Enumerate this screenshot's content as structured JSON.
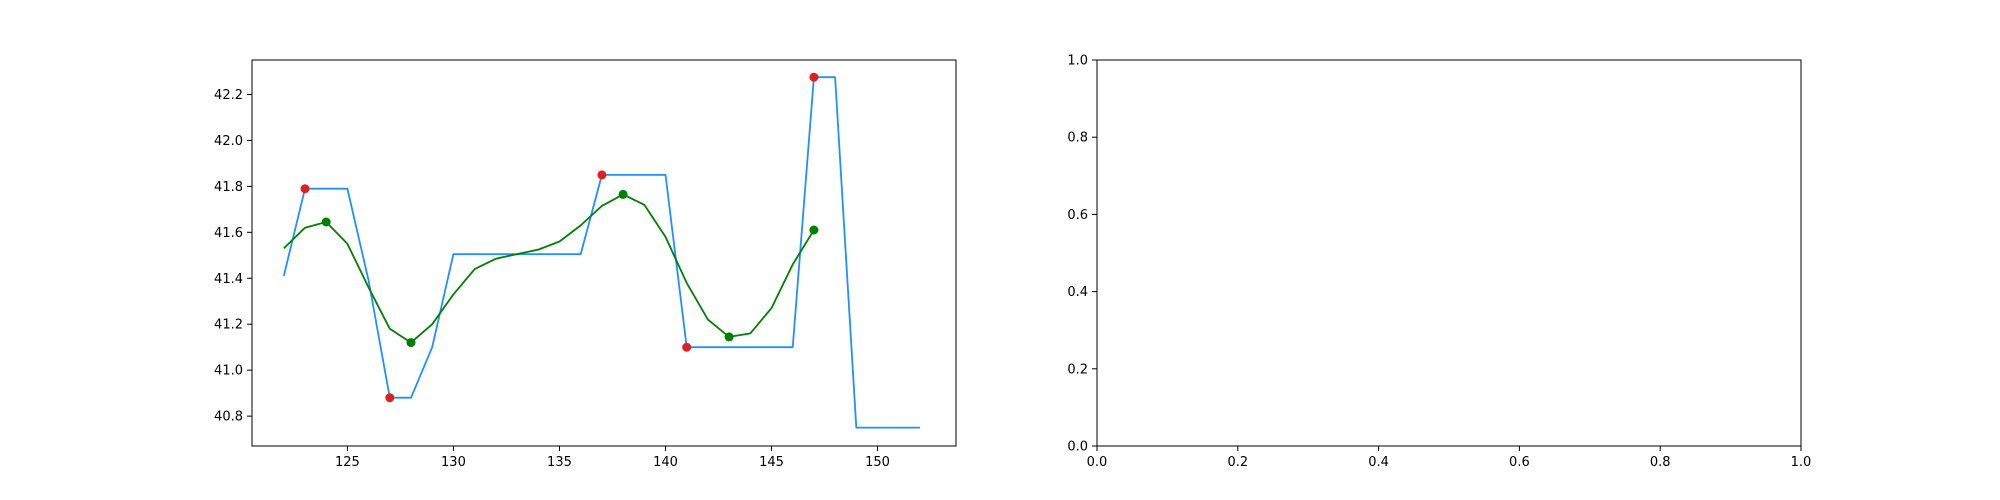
{
  "chart_data": [
    {
      "type": "line",
      "title": "",
      "xlabel": "",
      "ylabel": "",
      "xlim": [
        120.5,
        153.7
      ],
      "ylim": [
        40.67,
        42.35
      ],
      "xticks": [
        125,
        130,
        135,
        140,
        145,
        150
      ],
      "yticks": [
        40.8,
        41.0,
        41.2,
        41.4,
        41.6,
        41.8,
        42.0,
        42.2
      ],
      "ytick_labels": [
        "40.8",
        "41.0",
        "41.2",
        "41.4",
        "41.6",
        "41.8",
        "42.0",
        "42.2"
      ],
      "grid": false,
      "series": [
        {
          "kind": "line",
          "color": "#1e90ff",
          "x": [
            122,
            123,
            124,
            125,
            126,
            127,
            128,
            129,
            130,
            131,
            132,
            133,
            134,
            135,
            136,
            137,
            138,
            139,
            140,
            141,
            142,
            143,
            144,
            145,
            146,
            147,
            148,
            149,
            150,
            151,
            152
          ],
          "y": [
            41.41,
            41.79,
            41.79,
            41.79,
            41.39,
            40.88,
            40.88,
            41.1,
            41.505,
            41.505,
            41.505,
            41.505,
            41.505,
            41.505,
            41.505,
            41.85,
            41.85,
            41.85,
            41.85,
            41.1,
            41.1,
            41.1,
            41.1,
            41.1,
            41.1,
            42.275,
            42.275,
            40.75,
            40.75,
            40.75,
            40.75
          ]
        },
        {
          "kind": "line",
          "color": "#008000",
          "x": [
            122,
            123,
            124,
            125,
            126,
            127,
            128,
            129,
            130,
            131,
            132,
            133,
            134,
            135,
            136,
            137,
            138,
            139,
            140,
            141,
            142,
            143,
            144,
            145,
            146,
            147
          ],
          "y": [
            41.53,
            41.62,
            41.645,
            41.55,
            41.36,
            41.18,
            41.12,
            41.2,
            41.33,
            41.44,
            41.485,
            41.505,
            41.525,
            41.56,
            41.63,
            41.715,
            41.765,
            41.72,
            41.58,
            41.38,
            41.22,
            41.145,
            41.16,
            41.27,
            41.46,
            41.61
          ]
        },
        {
          "kind": "scatter",
          "color": "#e0201e",
          "x": [
            123,
            127,
            137,
            141,
            147
          ],
          "y": [
            41.79,
            40.88,
            41.85,
            41.1,
            42.275
          ]
        },
        {
          "kind": "scatter",
          "color": "#008000",
          "x": [
            124,
            128,
            138,
            143,
            147
          ],
          "y": [
            41.645,
            41.12,
            41.765,
            41.145,
            41.61
          ]
        }
      ]
    },
    {
      "type": "line",
      "title": "",
      "xlabel": "",
      "ylabel": "",
      "xlim": [
        0,
        1
      ],
      "ylim": [
        0,
        1
      ],
      "xticks": [
        0,
        0.2,
        0.4,
        0.6,
        0.8,
        1.0
      ],
      "xtick_labels": [
        "0.0",
        "0.2",
        "0.4",
        "0.6",
        "0.8",
        "1.0"
      ],
      "yticks": [
        0,
        0.2,
        0.4,
        0.6,
        0.8,
        1.0
      ],
      "ytick_labels": [
        "0.0",
        "0.2",
        "0.4",
        "0.6",
        "0.8",
        "1.0"
      ],
      "grid": false,
      "series": []
    }
  ]
}
